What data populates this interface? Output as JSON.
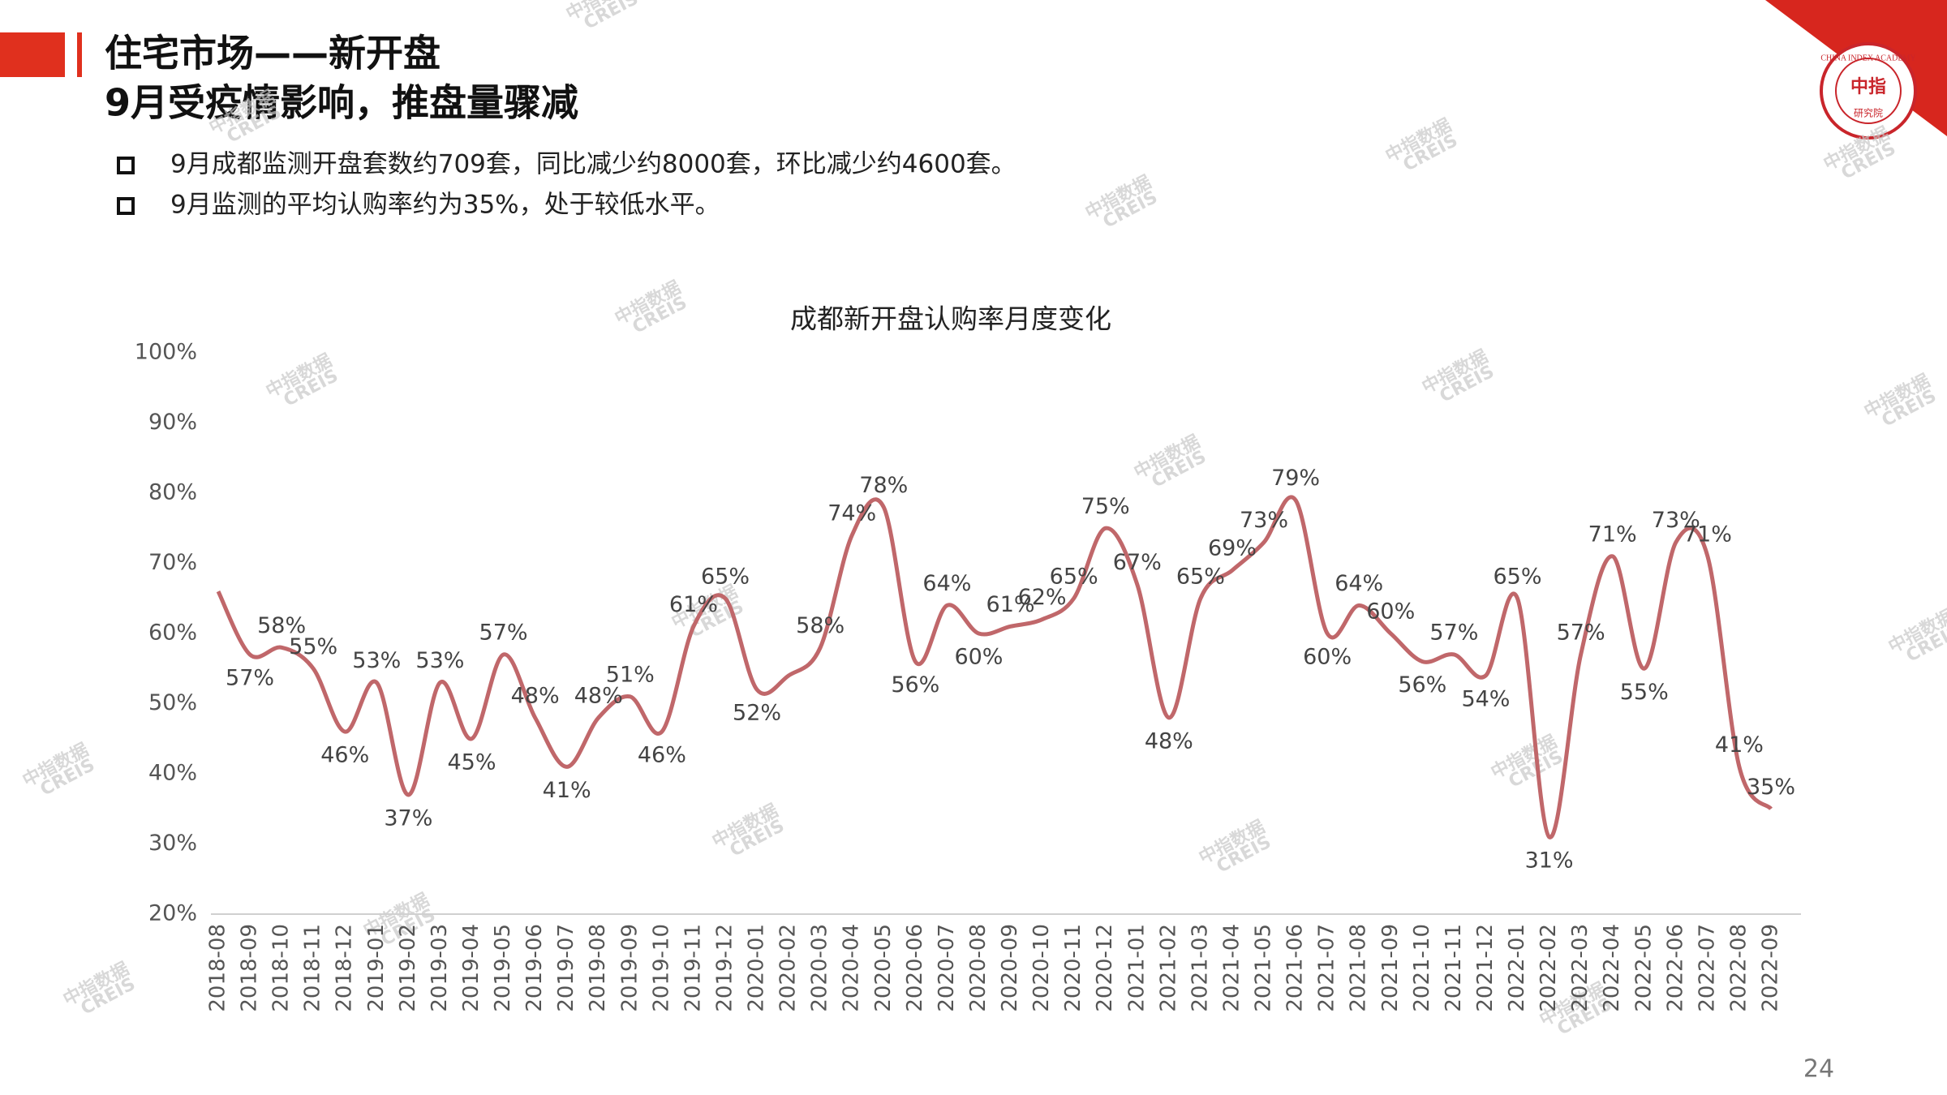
{
  "header": {
    "title_line1": "住宅市场——新开盘",
    "title_line2": "9月受疫情影响，推盘量骤减"
  },
  "bullets": [
    "9月成都监测开盘套数约709套，同比减少约8000套，环比减少约4600套。",
    "9月监测的平均认购率约为35%，处于较低水平。"
  ],
  "logo": {
    "ring_text": "CHINA INDEX ACADEMY",
    "center_text": "中指",
    "bottom_text": "研究院"
  },
  "watermark": [
    "中指数据",
    "CREIS"
  ],
  "page_number": "24",
  "chart_data": {
    "type": "line",
    "title": "成都新开盘认购率月度变化",
    "categories": [
      "2018-08",
      "2018-09",
      "2018-10",
      "2018-11",
      "2018-12",
      "2019-01",
      "2019-02",
      "2019-03",
      "2019-04",
      "2019-05",
      "2019-06",
      "2019-07",
      "2019-08",
      "2019-09",
      "2019-10",
      "2019-11",
      "2019-12",
      "2020-01",
      "2020-02",
      "2020-03",
      "2020-04",
      "2020-05",
      "2020-06",
      "2020-07",
      "2020-08",
      "2020-09",
      "2020-10",
      "2020-11",
      "2020-12",
      "2021-01",
      "2021-02",
      "2021-03",
      "2021-04",
      "2021-05",
      "2021-06",
      "2021-07",
      "2021-08",
      "2021-09",
      "2021-10",
      "2021-11",
      "2021-12",
      "2022-01",
      "2022-02",
      "2022-03",
      "2022-04",
      "2022-05",
      "2022-06",
      "2022-07",
      "2022-08",
      "2022-09"
    ],
    "values": [
      66,
      57,
      58,
      55,
      46,
      53,
      37,
      53,
      45,
      57,
      48,
      41,
      48,
      51,
      46,
      61,
      65,
      52,
      54,
      58,
      74,
      78,
      56,
      64,
      60,
      61,
      62,
      65,
      75,
      67,
      48,
      65,
      69,
      73,
      79,
      60,
      64,
      60,
      56,
      57,
      54,
      65,
      31,
      57,
      71,
      55,
      73,
      71,
      41,
      35
    ],
    "value_labels": [
      null,
      "57%",
      "58%",
      "55%",
      "46%",
      "53%",
      "37%",
      "53%",
      "45%",
      "57%",
      "48%",
      "41%",
      "48%",
      "51%",
      "46%",
      "61%",
      "65%",
      "52%",
      null,
      "58%",
      "74%",
      "78%",
      "56%",
      "64%",
      "60%",
      "61%",
      "62%",
      "65%",
      "75%",
      "67%",
      "48%",
      "65%",
      "69%",
      "73%",
      "79%",
      "60%",
      "64%",
      "60%",
      "56%",
      "57%",
      "54%",
      "65%",
      "31%",
      "57%",
      "71%",
      "55%",
      "73%",
      "71%",
      "41%",
      "35%"
    ],
    "color": "#c0676a",
    "ylim": [
      20,
      100
    ],
    "yticks": [
      {
        "value": 20,
        "label": "20%"
      },
      {
        "value": 30,
        "label": "30%"
      },
      {
        "value": 40,
        "label": "40%"
      },
      {
        "value": 50,
        "label": "50%"
      },
      {
        "value": 60,
        "label": "60%"
      },
      {
        "value": 70,
        "label": "70%"
      },
      {
        "value": 80,
        "label": "80%"
      },
      {
        "value": 90,
        "label": "90%"
      },
      {
        "value": 100,
        "label": "100%"
      }
    ],
    "grid": false
  }
}
